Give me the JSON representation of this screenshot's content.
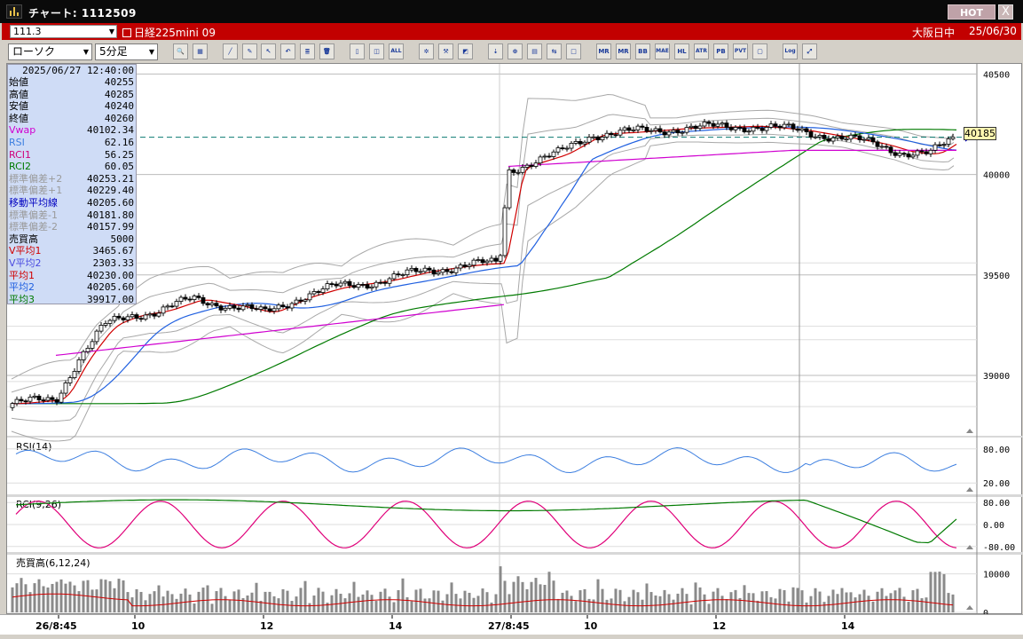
{
  "window": {
    "title": "チャート: 1112509",
    "hot_label": "HOT",
    "close_label": "X"
  },
  "header": {
    "code": "111.3",
    "instrument": "日経225mini 09",
    "exchange": "大阪日中",
    "date": "25/06/30"
  },
  "toolbar": {
    "chart_style": "ローソク",
    "interval": "5分足",
    "buttons": [
      {
        "name": "zoom-icon",
        "glyph": "🔍"
      },
      {
        "name": "table-icon",
        "glyph": "▦"
      },
      {
        "name": "draw-line-icon",
        "glyph": "╱"
      },
      {
        "name": "draw-icon",
        "glyph": "✎"
      },
      {
        "name": "cursor-icon",
        "glyph": "↖"
      },
      {
        "name": "undo-icon",
        "glyph": "↶"
      },
      {
        "name": "memo-icon",
        "glyph": "≣"
      },
      {
        "name": "trash-icon",
        "glyph": "🗑"
      },
      {
        "name": "candle-icon",
        "glyph": "▯"
      },
      {
        "name": "candle-select-icon",
        "glyph": "◫"
      },
      {
        "name": "all-button",
        "glyph": "ALL"
      },
      {
        "name": "settings-icon",
        "glyph": "✲"
      },
      {
        "name": "tool-icon",
        "glyph": "⚒"
      },
      {
        "name": "color-icon",
        "glyph": "◩"
      },
      {
        "name": "save-icon",
        "glyph": "⇣"
      },
      {
        "name": "search-icon",
        "glyph": "⊕"
      },
      {
        "name": "grid-icon",
        "glyph": "▤"
      },
      {
        "name": "compare-icon",
        "glyph": "⇆"
      },
      {
        "name": "disabled-icon",
        "glyph": "□"
      },
      {
        "name": "indicator-mr-button",
        "glyph": "MR"
      },
      {
        "name": "indicator-mr2-button",
        "glyph": "MR"
      },
      {
        "name": "indicator-bb-button",
        "glyph": "BB"
      },
      {
        "name": "indicator-mae-button",
        "glyph": "MAE"
      },
      {
        "name": "indicator-hl-button",
        "glyph": "HL"
      },
      {
        "name": "indicator-atr-button",
        "glyph": "ATR"
      },
      {
        "name": "indicator-pnf-button",
        "glyph": "PB"
      },
      {
        "name": "indicator-pvt-button",
        "glyph": "PVT"
      },
      {
        "name": "indicator-box-button",
        "glyph": "▢"
      },
      {
        "name": "log-button",
        "glyph": "Log"
      },
      {
        "name": "expand-icon",
        "glyph": "⤢"
      }
    ]
  },
  "data_panel": {
    "datetime": "2025/06/27 12:40:00",
    "rows": [
      {
        "label": "始値",
        "value": "40255",
        "color": "#000000"
      },
      {
        "label": "高値",
        "value": "40285",
        "color": "#000000"
      },
      {
        "label": "安値",
        "value": "40240",
        "color": "#000000"
      },
      {
        "label": "終値",
        "value": "40260",
        "color": "#000000"
      },
      {
        "label": "Vwap",
        "value": "40102.34",
        "color": "#d000d0"
      },
      {
        "label": "RSI",
        "value": "62.16",
        "color": "#3d7fe0"
      },
      {
        "label": "RCI1",
        "value": "56.25",
        "color": "#d0007a"
      },
      {
        "label": "RCI2",
        "value": "60.05",
        "color": "#007a00"
      },
      {
        "label": "標準偏差+2",
        "value": "40253.21",
        "color": "#9a9a9a"
      },
      {
        "label": "標準偏差+1",
        "value": "40229.40",
        "color": "#9a9a9a"
      },
      {
        "label": "移動平均線",
        "value": "40205.60",
        "color": "#0000c0"
      },
      {
        "label": "標準偏差-1",
        "value": "40181.80",
        "color": "#9a9a9a"
      },
      {
        "label": "標準偏差-2",
        "value": "40157.99",
        "color": "#9a9a9a"
      },
      {
        "label": "売買高",
        "value": "5000",
        "color": "#000000"
      },
      {
        "label": "V平均1",
        "value": "3465.67",
        "color": "#d00000"
      },
      {
        "label": "V平均2",
        "value": "2303.33",
        "color": "#4a4ae0"
      },
      {
        "label": "平均1",
        "value": "40230.00",
        "color": "#d00000"
      },
      {
        "label": "平均2",
        "value": "40205.60",
        "color": "#2060e0"
      },
      {
        "label": "平均3",
        "value": "39917.00",
        "color": "#007a00"
      }
    ]
  },
  "chart_data": [
    {
      "type": "candlestick",
      "panel": "price",
      "ylim": [
        38700,
        40550
      ],
      "yticks": [
        "40500",
        "40000",
        "39500",
        "39000"
      ],
      "last_price_label": "40185",
      "last_price": 40185,
      "grid": true,
      "series_colors": {
        "candle_up": "#ffffff",
        "candle_down": "#000000",
        "ma1": "#d00000",
        "ma2": "#2060e0",
        "ma3": "#007a00",
        "vwap": "#d000d0",
        "bands": "#9a9a9a",
        "reference": "#0a7a70"
      }
    },
    {
      "type": "line",
      "panel": "rsi",
      "label": "RSI(14)",
      "ylim": [
        0,
        100
      ],
      "yticks": [
        "80.00",
        "20.00"
      ],
      "color": "#3d7fe0"
    },
    {
      "type": "line",
      "panel": "rci",
      "label": "RCI(9,26)",
      "ylim": [
        -100,
        100
      ],
      "yticks": [
        "80.00",
        "0.00",
        "-80.00"
      ],
      "colors": [
        "#e0007a",
        "#007a00"
      ]
    },
    {
      "type": "bar",
      "panel": "volume",
      "label": "売買高(6,12,24)",
      "ylim": [
        0,
        15000
      ],
      "yticks": [
        "10000",
        "0"
      ],
      "colors": {
        "bar": "#8a8a8a",
        "avg1": "#d00000",
        "avg2": "#4a4ae0"
      }
    }
  ],
  "x_axis": {
    "labels": [
      "26/8:45",
      "10",
      "12",
      "14",
      "27/8:45",
      "10",
      "12",
      "14"
    ]
  }
}
